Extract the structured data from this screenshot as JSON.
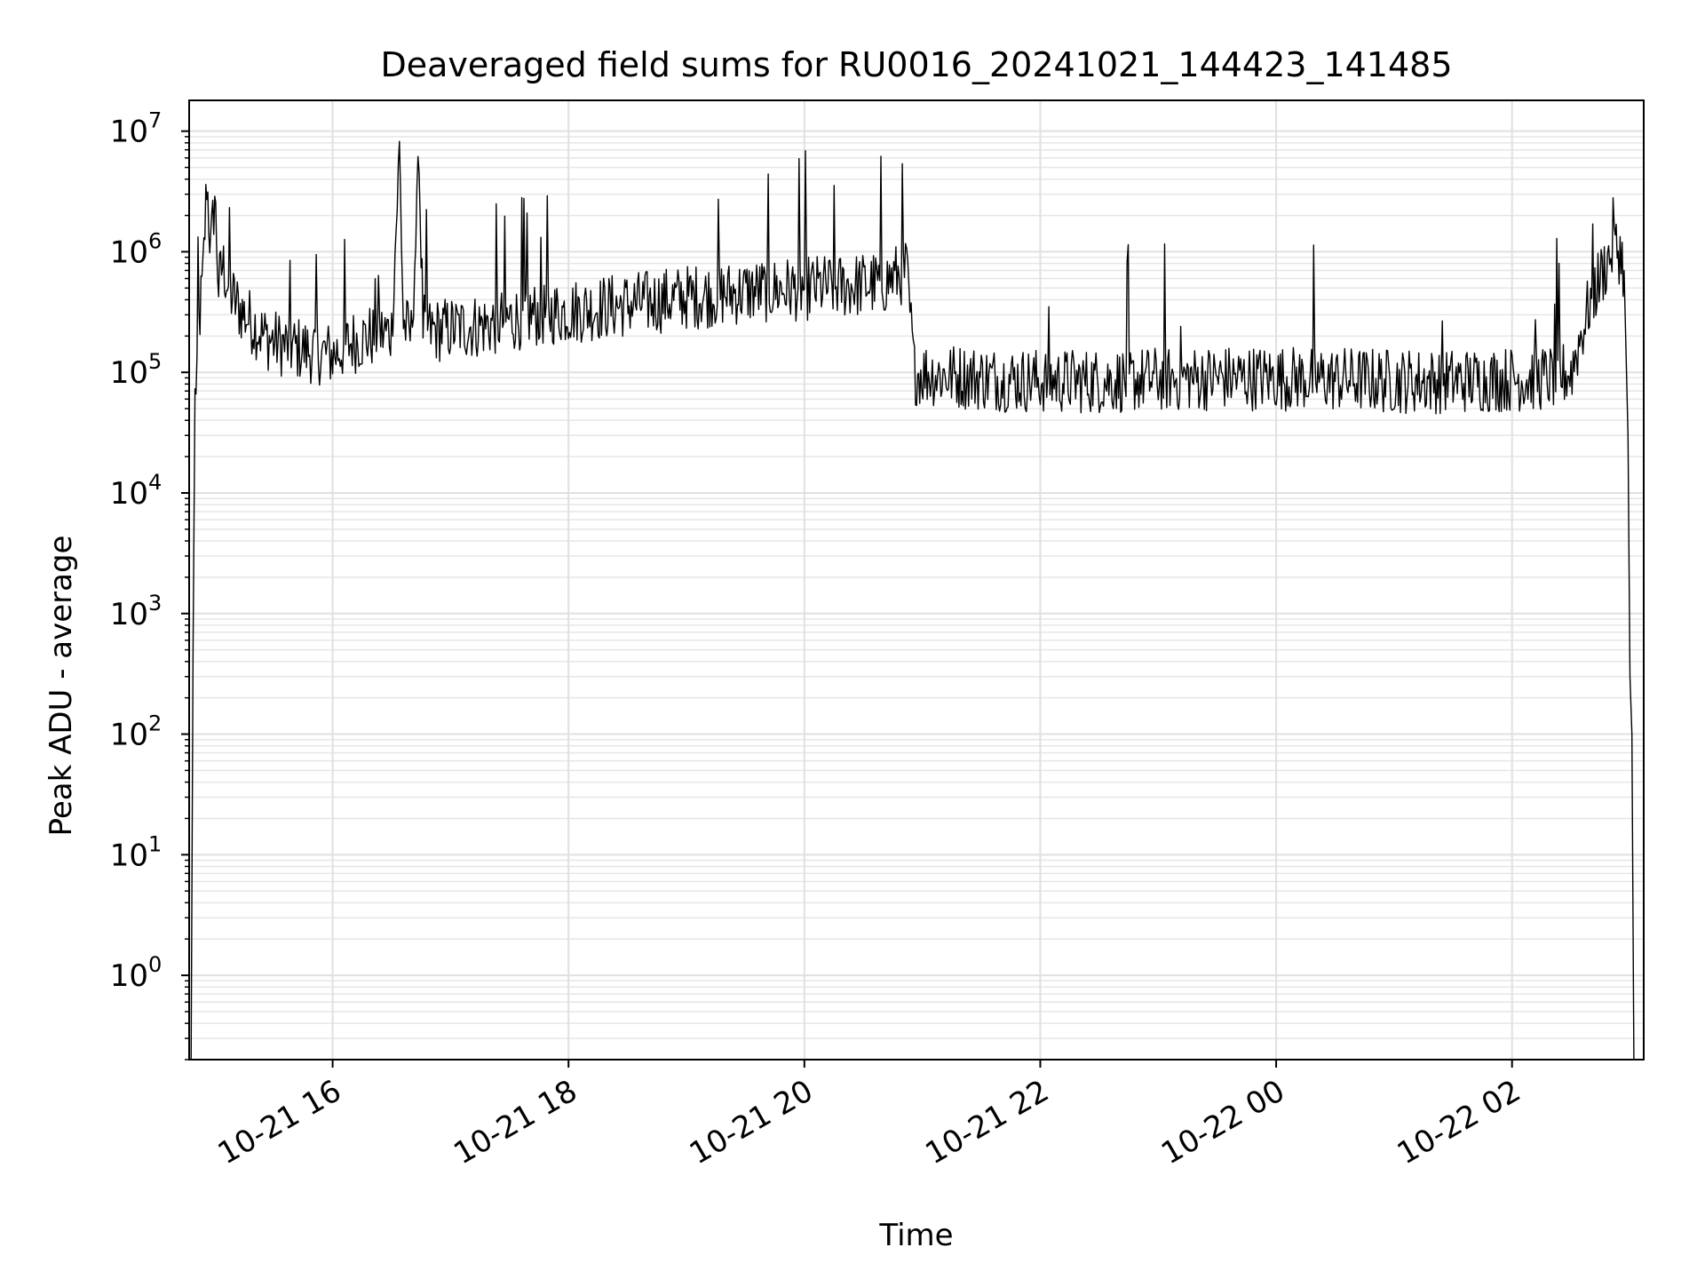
{
  "chart_data": {
    "type": "line",
    "title": "Deaveraged field sums for RU0016_20241021_144423_141485",
    "xlabel": "Time",
    "ylabel": "Peak ADU - average",
    "yscale": "log",
    "ylim": [
      0.2,
      18000000
    ],
    "xlim": [
      "2024-10-21 14:47",
      "2024-10-22 03:07"
    ],
    "grid": true,
    "legend": "none",
    "x_ticks": [
      {
        "value": "2024-10-21 16:00",
        "label": "10-21 16"
      },
      {
        "value": "2024-10-21 18:00",
        "label": "10-21 18"
      },
      {
        "value": "2024-10-21 20:00",
        "label": "10-21 20"
      },
      {
        "value": "2024-10-21 22:00",
        "label": "10-21 22"
      },
      {
        "value": "2024-10-22 00:00",
        "label": "10-22 00"
      },
      {
        "value": "2024-10-22 02:00",
        "label": "10-22 02"
      }
    ],
    "y_ticks": [
      {
        "value": 1,
        "base": "10",
        "exp": "0"
      },
      {
        "value": 10,
        "base": "10",
        "exp": "1"
      },
      {
        "value": 100,
        "base": "10",
        "exp": "2"
      },
      {
        "value": 1000,
        "base": "10",
        "exp": "3"
      },
      {
        "value": 10000,
        "base": "10",
        "exp": "4"
      },
      {
        "value": 100000,
        "base": "10",
        "exp": "5"
      },
      {
        "value": 1000000,
        "base": "10",
        "exp": "6"
      },
      {
        "value": 10000000,
        "base": "10",
        "exp": "7"
      }
    ],
    "series": [
      {
        "color": "#000000",
        "x": [
          "2024-10-21 14:48",
          "2024-10-21 14:49",
          "2024-10-21 14:50",
          "2024-10-21 14:51",
          "2024-10-21 14:52",
          "2024-10-21 14:54",
          "2024-10-21 14:56",
          "2024-10-21 14:58",
          "2024-10-21 15:00",
          "2024-10-21 15:02",
          "2024-10-21 15:04",
          "2024-10-21 15:06",
          "2024-10-21 15:08",
          "2024-10-21 15:10",
          "2024-10-21 15:12",
          "2024-10-21 15:15",
          "2024-10-21 15:20",
          "2024-10-21 15:25",
          "2024-10-21 15:30",
          "2024-10-21 15:40",
          "2024-10-21 15:50",
          "2024-10-21 16:00",
          "2024-10-21 16:10",
          "2024-10-21 16:20",
          "2024-10-21 16:30",
          "2024-10-21 16:34",
          "2024-10-21 16:36",
          "2024-10-21 16:40",
          "2024-10-21 16:44",
          "2024-10-21 16:46",
          "2024-10-21 16:50",
          "2024-10-21 17:00",
          "2024-10-21 17:20",
          "2024-10-21 17:40",
          "2024-10-21 18:00",
          "2024-10-21 18:20",
          "2024-10-21 18:40",
          "2024-10-21 19:00",
          "2024-10-21 19:20",
          "2024-10-21 19:40",
          "2024-10-21 20:00",
          "2024-10-21 20:20",
          "2024-10-21 20:40",
          "2024-10-21 20:52",
          "2024-10-21 20:56",
          "2024-10-21 21:10",
          "2024-10-21 21:30",
          "2024-10-21 22:00",
          "2024-10-21 22:30",
          "2024-10-21 23:00",
          "2024-10-21 23:30",
          "2024-10-22 00:00",
          "2024-10-22 00:30",
          "2024-10-22 01:00",
          "2024-10-22 01:30",
          "2024-10-22 02:00",
          "2024-10-22 02:20",
          "2024-10-22 02:30",
          "2024-10-22 02:40",
          "2024-10-22 02:48",
          "2024-10-22 02:52",
          "2024-10-22 02:55",
          "2024-10-22 02:57",
          "2024-10-22 02:59",
          "2024-10-22 03:00",
          "2024-10-22 03:01",
          "2024-10-22 03:02"
        ],
        "y": [
          0.2,
          500,
          60000,
          120000,
          250000,
          600000,
          4000000,
          1000000,
          3000000,
          500000,
          800000,
          600000,
          450000,
          400000,
          350000,
          300000,
          250000,
          200000,
          180000,
          160000,
          150000,
          140000,
          180000,
          200000,
          220000,
          7000000,
          250000,
          200000,
          5000000,
          250000,
          220000,
          230000,
          250000,
          300000,
          320000,
          350000,
          380000,
          420000,
          450000,
          480000,
          500000,
          520000,
          550000,
          700000,
          100000,
          95000,
          90000,
          85000,
          85000,
          88000,
          90000,
          90000,
          88000,
          85000,
          85000,
          88000,
          90000,
          100000,
          400000,
          800000,
          1100000,
          1000000,
          700000,
          30000,
          300,
          100,
          0.2
        ]
      }
    ]
  }
}
